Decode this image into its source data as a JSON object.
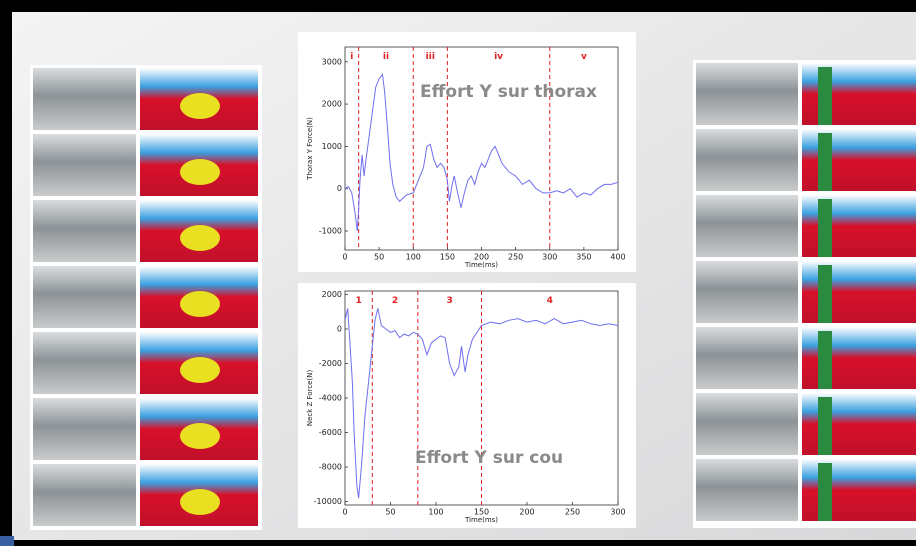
{
  "chart_data": [
    {
      "type": "line",
      "annotation": "Effort Y sur thorax",
      "x_label": "Time(ms)",
      "y_label": "Thorax Y Force(N)",
      "xlim": [
        0,
        400
      ],
      "xticks": [
        0,
        50,
        100,
        150,
        200,
        250,
        300,
        350,
        400
      ],
      "ylim": [
        -1450,
        3350
      ],
      "yticks": [
        -1000,
        0,
        1000,
        2000,
        3000
      ],
      "dividers": [
        20,
        100,
        150,
        300
      ],
      "phase_labels": [
        "i",
        "ii",
        "iii",
        "iv",
        "v"
      ],
      "divider_color": "#e02020",
      "color": "#6f6ff0",
      "x": [
        0,
        5,
        10,
        15,
        18,
        20,
        22,
        25,
        28,
        30,
        35,
        40,
        45,
        50,
        55,
        58,
        62,
        66,
        70,
        75,
        80,
        90,
        100,
        105,
        110,
        115,
        120,
        125,
        130,
        135,
        140,
        145,
        150,
        153,
        157,
        160,
        165,
        170,
        175,
        180,
        185,
        190,
        195,
        200,
        205,
        210,
        215,
        220,
        225,
        230,
        240,
        250,
        260,
        270,
        280,
        290,
        300,
        310,
        320,
        330,
        340,
        350,
        360,
        370,
        380,
        390,
        400
      ],
      "values": [
        0,
        50,
        -100,
        -600,
        -1000,
        -500,
        200,
        800,
        300,
        600,
        1200,
        1800,
        2400,
        2600,
        2700,
        2300,
        1500,
        600,
        100,
        -200,
        -300,
        -150,
        -100,
        100,
        300,
        500,
        1000,
        1050,
        700,
        500,
        600,
        500,
        200,
        -300,
        100,
        300,
        -100,
        -450,
        -100,
        200,
        300,
        100,
        400,
        600,
        500,
        700,
        900,
        1000,
        800,
        600,
        400,
        300,
        100,
        200,
        0,
        -100,
        -100,
        -50,
        -100,
        0,
        -200,
        -100,
        -150,
        0,
        100,
        100,
        150
      ]
    },
    {
      "type": "line",
      "annotation": "Effort Y sur cou",
      "x_label": "Time(ms)",
      "y_label": "Neck Z Force(N)",
      "xlim": [
        0,
        300
      ],
      "xticks": [
        0,
        50,
        100,
        150,
        200,
        250,
        300
      ],
      "ylim": [
        -10200,
        2200
      ],
      "yticks": [
        -10000,
        -8000,
        -6000,
        -4000,
        -2000,
        0,
        2000
      ],
      "dividers": [
        30,
        80,
        150
      ],
      "phase_labels": [
        "1",
        "2",
        "3",
        "4"
      ],
      "divider_color": "#e02020",
      "color": "#6f6ff0",
      "x": [
        0,
        3,
        5,
        8,
        10,
        13,
        15,
        18,
        22,
        26,
        30,
        33,
        36,
        40,
        45,
        50,
        55,
        60,
        65,
        70,
        75,
        80,
        85,
        90,
        95,
        100,
        105,
        110,
        115,
        120,
        125,
        128,
        132,
        135,
        140,
        150,
        160,
        170,
        180,
        190,
        200,
        210,
        220,
        230,
        240,
        250,
        260,
        270,
        280,
        290,
        300
      ],
      "values": [
        500,
        1200,
        -500,
        -3000,
        -6000,
        -9000,
        -9800,
        -8000,
        -5000,
        -3000,
        -1000,
        500,
        1200,
        200,
        0,
        -200,
        -100,
        -500,
        -300,
        -400,
        -200,
        -300,
        -600,
        -1500,
        -800,
        -600,
        -400,
        -500,
        -2000,
        -2700,
        -2200,
        -1000,
        -2500,
        -1500,
        -600,
        200,
        400,
        300,
        500,
        600,
        400,
        500,
        300,
        600,
        300,
        400,
        500,
        300,
        200,
        300,
        200
      ]
    }
  ]
}
